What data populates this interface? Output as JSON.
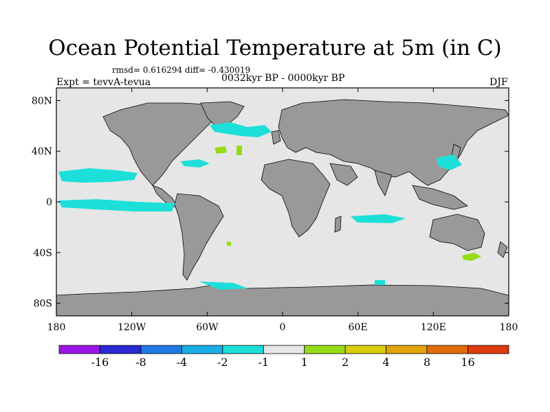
{
  "title": "Ocean Potential Temperature at 5m (in C)",
  "stats": "rmsd= 0.616294 diff= -0.430019",
  "expt": "Expt = tevvA-tevua",
  "period": "0032kyr BP - 0000kyr BP",
  "season": "DJF",
  "axes": {
    "lon_ticks": [
      "180",
      "120W",
      "60W",
      "0",
      "60E",
      "120E",
      "180"
    ],
    "lat_ticks": [
      "80N",
      "40N",
      "0",
      "40S",
      "80S"
    ]
  },
  "colorbar": {
    "colors": [
      "#9b16e6",
      "#2a2ad6",
      "#1f7ae3",
      "#19afe6",
      "#1ddfd9",
      "#e6e6e6",
      "#96dc16",
      "#d8ce0a",
      "#e3a30b",
      "#e06d0c",
      "#dc3b0d"
    ],
    "labels": [
      "-16",
      "-8",
      "-4",
      "-2",
      "-1",
      "1",
      "2",
      "4",
      "8",
      "16"
    ]
  },
  "colors": {
    "land": "#999999",
    "ocean": "#e6e6e6",
    "coast": "#000000"
  }
}
